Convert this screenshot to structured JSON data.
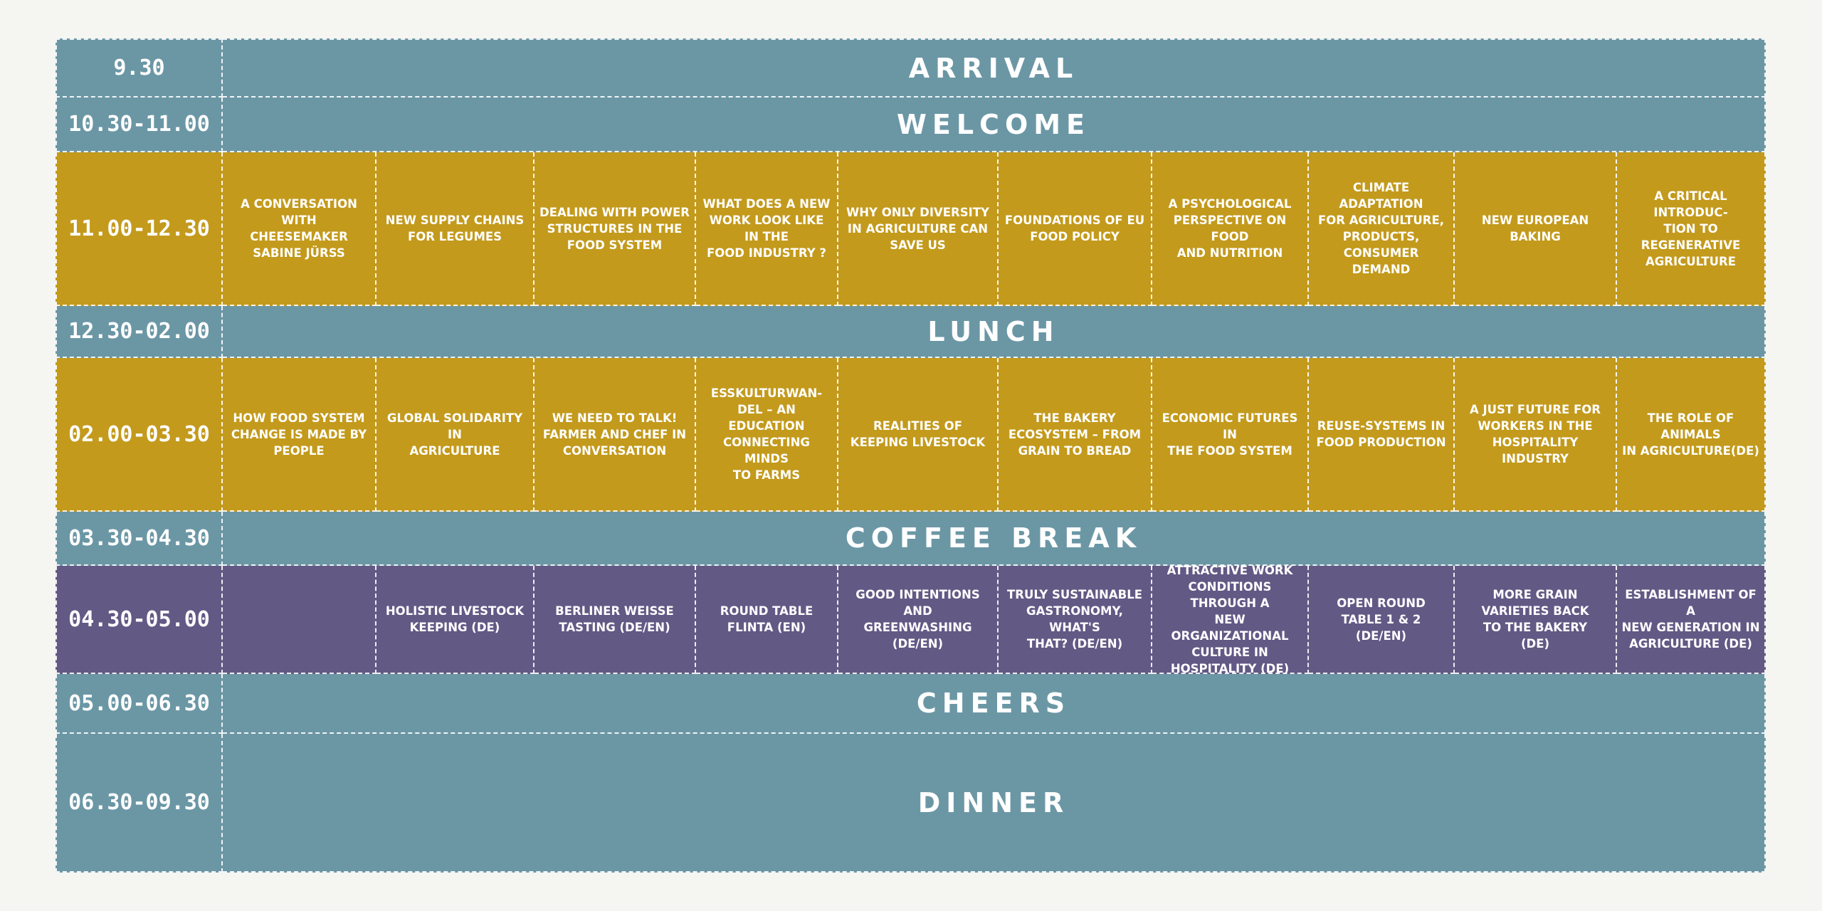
{
  "colors": {
    "background": "#f5f6f2",
    "plenary": "#6b97a5",
    "workshop_block": "#c39a1c",
    "late_block": "#635985",
    "text": "#ffffff"
  },
  "schedule": {
    "arrival": {
      "time": "9.30",
      "title": "ARRIVAL"
    },
    "welcome": {
      "time": "10.30-11.00",
      "title": "WELCOME"
    },
    "block1": {
      "time": "11.00-12.30",
      "sessions": [
        "A CONVERSATION WITH\nCHEESEMAKER\nSABINE JÜRSS",
        "NEW SUPPLY CHAINS\nFOR LEGUMES",
        "DEALING WITH POWER\nSTRUCTURES IN THE\nFOOD SYSTEM",
        "WHAT DOES A NEW\nWORK LOOK LIKE IN THE\nFOOD INDUSTRY ?",
        "WHY ONLY DIVERSITY\nIN AGRICULTURE CAN\nSAVE US",
        "FOUNDATIONS OF EU\nFOOD POLICY",
        "A PSYCHOLOGICAL\nPERSPECTIVE ON FOOD\nAND NUTRITION",
        "CLIMATE ADAPTATION\nFOR AGRICULTURE,\nPRODUCTS,\nCONSUMER DEMAND",
        "NEW EUROPEAN BAKING",
        "A CRITICAL INTRODUC-\nTION TO REGENERATIVE\nAGRICULTURE"
      ]
    },
    "lunch": {
      "time": "12.30-02.00",
      "title": "LUNCH"
    },
    "block2": {
      "time": "02.00-03.30",
      "sessions": [
        "HOW FOOD SYSTEM\nCHANGE IS MADE BY\nPEOPLE",
        "GLOBAL SOLIDARITY IN\nAGRICULTURE",
        "WE NEED TO TALK!\nFARMER AND CHEF IN\nCONVERSATION",
        "ESSKULTURWAN-\nDEL – AN EDUCATION\nCONNECTING MINDS\nTO FARMS",
        "REALITIES OF\nKEEPING LIVESTOCK",
        "THE BAKERY\nECOSYSTEM – FROM\nGRAIN TO BREAD",
        "ECONOMIC FUTURES IN\nTHE FOOD SYSTEM",
        "REUSE-SYSTEMS IN\nFOOD PRODUCTION",
        "A JUST FUTURE FOR\nWORKERS IN THE\nHOSPITALITY INDUSTRY",
        "THE ROLE OF ANIMALS\nIN AGRICULTURE(DE)"
      ]
    },
    "coffee": {
      "time": "03.30-04.30",
      "title": "COFFEE BREAK"
    },
    "block3": {
      "time": "04.30-05.00",
      "sessions": [
        "",
        "HOLISTIC LIVESTOCK\nKEEPING (DE)",
        "BERLINER WEISSE\nTASTING (DE/EN)",
        "ROUND TABLE\nFLINTA (EN)",
        "GOOD INTENTIONS AND\nGREENWASHING (DE/EN)",
        "TRULY SUSTAINABLE\nGASTRONOMY, WHAT'S\nTHAT? (DE/EN)",
        "ATTRACTIVE WORK\nCONDITIONS THROUGH A\nNEW ORGANIZATIONAL\nCULTURE IN\nHOSPITALITY (DE)",
        "OPEN ROUND\nTABLE 1 & 2\n(DE/EN)",
        "MORE GRAIN\nVARIETIES BACK\nTO THE BAKERY\n(DE)",
        "ESTABLISHMENT OF A\nNEW GENERATION IN\nAGRICULTURE (DE)"
      ]
    },
    "cheers": {
      "time": "05.00-06.30",
      "title": "CHEERS"
    },
    "dinner": {
      "time": "06.30-09.30",
      "title": "DINNER"
    }
  }
}
